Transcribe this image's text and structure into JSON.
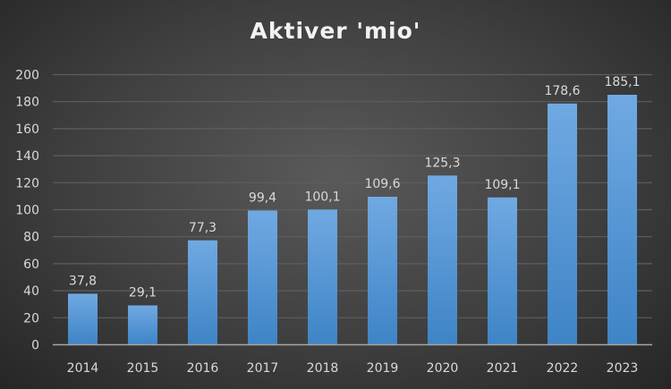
{
  "chart_data": {
    "type": "bar",
    "title": "Aktiver 'mio'",
    "xlabel": "",
    "ylabel": "",
    "categories": [
      "2014",
      "2015",
      "2016",
      "2017",
      "2018",
      "2019",
      "2020",
      "2021",
      "2022",
      "2023"
    ],
    "values": [
      37.8,
      29.1,
      77.3,
      99.4,
      100.1,
      109.6,
      125.3,
      109.1,
      178.6,
      185.1
    ],
    "data_labels": [
      "37,8",
      "29,1",
      "77,3",
      "99,4",
      "100,1",
      "109,6",
      "125,3",
      "109,1",
      "178,6",
      "185,1"
    ],
    "ylim": [
      0,
      200
    ],
    "yticks": [
      0,
      20,
      40,
      60,
      80,
      100,
      120,
      140,
      160,
      180,
      200
    ],
    "grid": true,
    "legend": "none",
    "colors": {
      "bar_top": "#70a9e2",
      "bar_bottom": "#3e84c6",
      "background": "#404040"
    }
  }
}
